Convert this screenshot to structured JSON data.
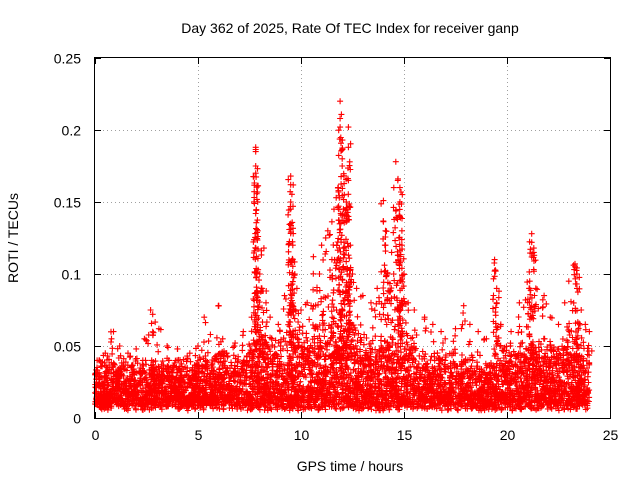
{
  "chart_data": {
    "type": "scatter",
    "title": "Day 362 of 2025, Rate Of TEC Index for receiver ganp",
    "xlabel": "GPS time / hours",
    "ylabel": "ROTI / TECUs",
    "xlim": [
      0,
      25
    ],
    "ylim": [
      0,
      0.25
    ],
    "xticks": [
      0,
      5,
      10,
      15,
      20,
      25
    ],
    "xtick_labels": [
      "0",
      "5",
      "10",
      "15",
      "20",
      "25"
    ],
    "yticks": [
      0,
      0.05,
      0.1,
      0.15,
      0.2,
      0.25
    ],
    "ytick_labels": [
      "0",
      "0.05",
      "0.1",
      "0.15",
      "0.2",
      "0.25"
    ],
    "grid": true,
    "marker": "plus",
    "color": "#ff0000",
    "series": [
      {
        "name": "ROTI",
        "points": [
          [
            0.1,
            0.04
          ],
          [
            0.3,
            0.036
          ],
          [
            0.5,
            0.045
          ],
          [
            0.8,
            0.055
          ],
          [
            0.9,
            0.06
          ],
          [
            1.2,
            0.05
          ],
          [
            1.6,
            0.045
          ],
          [
            2.0,
            0.048
          ],
          [
            2.4,
            0.055
          ],
          [
            2.7,
            0.075
          ],
          [
            2.8,
            0.072
          ],
          [
            3.1,
            0.062
          ],
          [
            3.5,
            0.05
          ],
          [
            4.0,
            0.048
          ],
          [
            4.6,
            0.045
          ],
          [
            5.0,
            0.05
          ],
          [
            5.3,
            0.07
          ],
          [
            5.6,
            0.058
          ],
          [
            6.0,
            0.078
          ],
          [
            6.2,
            0.055
          ],
          [
            6.8,
            0.052
          ],
          [
            7.2,
            0.06
          ],
          [
            7.6,
            0.07
          ],
          [
            7.8,
            0.188
          ],
          [
            7.8,
            0.185
          ],
          [
            7.8,
            0.175
          ],
          [
            7.8,
            0.17
          ],
          [
            7.8,
            0.142
          ],
          [
            7.9,
            0.13
          ],
          [
            8.0,
            0.1
          ],
          [
            8.1,
            0.09
          ],
          [
            8.2,
            0.118
          ],
          [
            8.3,
            0.08
          ],
          [
            8.5,
            0.07
          ],
          [
            8.9,
            0.065
          ],
          [
            9.2,
            0.085
          ],
          [
            9.5,
            0.168
          ],
          [
            9.5,
            0.162
          ],
          [
            9.5,
            0.15
          ],
          [
            9.5,
            0.145
          ],
          [
            9.5,
            0.135
          ],
          [
            9.6,
            0.12
          ],
          [
            9.6,
            0.11
          ],
          [
            9.7,
            0.1
          ],
          [
            9.8,
            0.09
          ],
          [
            10.0,
            0.075
          ],
          [
            10.3,
            0.08
          ],
          [
            10.6,
            0.112
          ],
          [
            10.9,
            0.1
          ],
          [
            11.0,
            0.12
          ],
          [
            11.3,
            0.13
          ],
          [
            11.5,
            0.11
          ],
          [
            11.6,
            0.145
          ],
          [
            11.8,
            0.16
          ],
          [
            11.9,
            0.22
          ],
          [
            11.9,
            0.208
          ],
          [
            11.9,
            0.202
          ],
          [
            12.0,
            0.18
          ],
          [
            12.0,
            0.175
          ],
          [
            12.1,
            0.155
          ],
          [
            12.2,
            0.15
          ],
          [
            12.3,
            0.202
          ],
          [
            12.3,
            0.188
          ],
          [
            12.3,
            0.165
          ],
          [
            12.3,
            0.14
          ],
          [
            12.4,
            0.12
          ],
          [
            12.5,
            0.1
          ],
          [
            12.7,
            0.09
          ],
          [
            13.0,
            0.085
          ],
          [
            13.4,
            0.08
          ],
          [
            13.7,
            0.09
          ],
          [
            14.0,
            0.151
          ],
          [
            14.1,
            0.13
          ],
          [
            14.1,
            0.12
          ],
          [
            14.2,
            0.1
          ],
          [
            14.4,
            0.115
          ],
          [
            14.5,
            0.1
          ],
          [
            14.6,
            0.178
          ],
          [
            14.7,
            0.165
          ],
          [
            14.8,
            0.16
          ],
          [
            14.8,
            0.15
          ],
          [
            14.8,
            0.14
          ],
          [
            14.9,
            0.13
          ],
          [
            14.9,
            0.12
          ],
          [
            15.0,
            0.1
          ],
          [
            15.2,
            0.08
          ],
          [
            15.5,
            0.075
          ],
          [
            16.0,
            0.07
          ],
          [
            16.4,
            0.065
          ],
          [
            16.8,
            0.06
          ],
          [
            17.0,
            0.055
          ],
          [
            17.5,
            0.062
          ],
          [
            17.9,
            0.078
          ],
          [
            18.2,
            0.065
          ],
          [
            18.6,
            0.06
          ],
          [
            19.0,
            0.055
          ],
          [
            19.4,
            0.11
          ],
          [
            19.4,
            0.102
          ],
          [
            19.5,
            0.09
          ],
          [
            19.5,
            0.08
          ],
          [
            19.7,
            0.065
          ],
          [
            20.2,
            0.06
          ],
          [
            20.6,
            0.08
          ],
          [
            20.9,
            0.082
          ],
          [
            21.1,
            0.095
          ],
          [
            21.1,
            0.09
          ],
          [
            21.2,
            0.128
          ],
          [
            21.2,
            0.122
          ],
          [
            21.3,
            0.118
          ],
          [
            21.3,
            0.115
          ],
          [
            21.4,
            0.09
          ],
          [
            21.8,
            0.085
          ],
          [
            22.1,
            0.07
          ],
          [
            22.5,
            0.065
          ],
          [
            22.8,
            0.08
          ],
          [
            23.0,
            0.095
          ],
          [
            23.3,
            0.107
          ],
          [
            23.3,
            0.105
          ],
          [
            23.4,
            0.1
          ],
          [
            23.4,
            0.09
          ],
          [
            23.6,
            0.075
          ],
          [
            23.8,
            0.065
          ],
          [
            24.0,
            0.06
          ]
        ]
      }
    ],
    "dense_band": {
      "description": "continuous dense cluster of ROTI samples across the whole day",
      "floor": 0.005,
      "envelope": [
        [
          0.0,
          0.038
        ],
        [
          1.0,
          0.042
        ],
        [
          2.0,
          0.04
        ],
        [
          3.0,
          0.04
        ],
        [
          4.0,
          0.04
        ],
        [
          5.0,
          0.042
        ],
        [
          6.0,
          0.045
        ],
        [
          7.0,
          0.045
        ],
        [
          8.0,
          0.058
        ],
        [
          9.0,
          0.055
        ],
        [
          10.0,
          0.06
        ],
        [
          11.0,
          0.065
        ],
        [
          12.0,
          0.072
        ],
        [
          13.0,
          0.055
        ],
        [
          14.0,
          0.058
        ],
        [
          15.0,
          0.06
        ],
        [
          16.0,
          0.048
        ],
        [
          17.0,
          0.045
        ],
        [
          18.0,
          0.045
        ],
        [
          19.0,
          0.04
        ],
        [
          20.0,
          0.05
        ],
        [
          21.0,
          0.055
        ],
        [
          22.0,
          0.055
        ],
        [
          23.0,
          0.058
        ],
        [
          24.0,
          0.05
        ]
      ]
    }
  }
}
